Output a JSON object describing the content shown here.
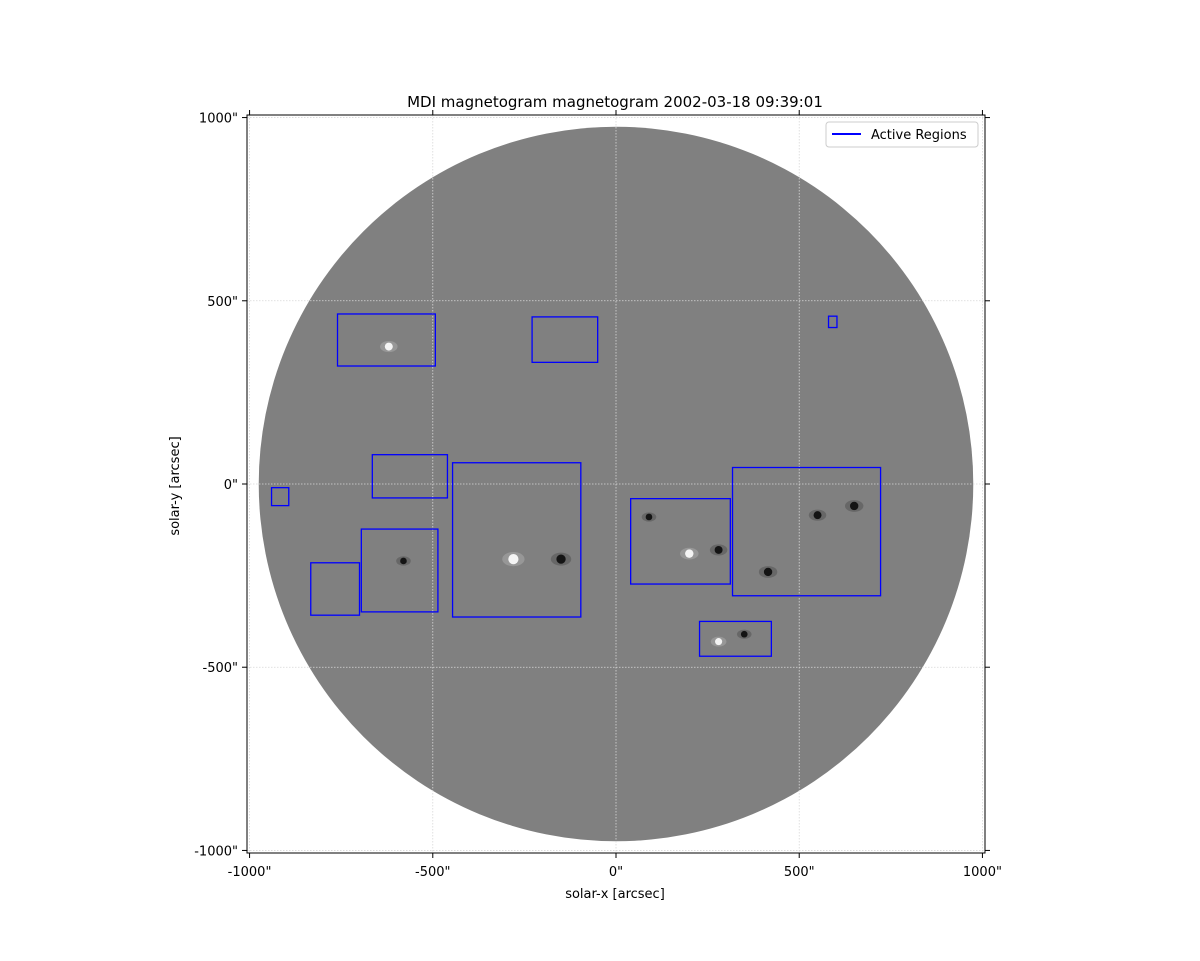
{
  "chart_data": {
    "type": "image",
    "title": "MDI magnetogram magnetogram 2002-03-18 09:39:01",
    "xlabel": "solar-x [arcsec]",
    "ylabel": "solar-y [arcsec]",
    "xlim": [
      -1007,
      1007
    ],
    "ylim": [
      -1007,
      1007
    ],
    "grid": true,
    "legend": {
      "position": "top-right",
      "entries": [
        {
          "label": "Active Regions",
          "color": "#0000ff"
        }
      ]
    },
    "x_ticks": [
      {
        "value": -1000,
        "label": "-1000\""
      },
      {
        "value": -500,
        "label": "-500\""
      },
      {
        "value": 0,
        "label": "0\""
      },
      {
        "value": 500,
        "label": "500\""
      },
      {
        "value": 1000,
        "label": "1000\""
      }
    ],
    "y_ticks": [
      {
        "value": 1000,
        "label": "1000\""
      },
      {
        "value": 500,
        "label": "500\""
      },
      {
        "value": 0,
        "label": "0\""
      },
      {
        "value": -500,
        "label": "-500\""
      },
      {
        "value": -1000,
        "label": "-1000\""
      }
    ],
    "solar_disk": {
      "center": [
        0,
        0
      ],
      "radius": 975,
      "color": "#808080"
    },
    "active_regions": [
      {
        "x": [
          -760,
          -493
        ],
        "y": [
          322,
          464
        ]
      },
      {
        "x": [
          -229,
          -50
        ],
        "y": [
          332,
          456
        ]
      },
      {
        "x": [
          580,
          603
        ],
        "y": [
          427,
          458
        ]
      },
      {
        "x": [
          -665,
          -460
        ],
        "y": [
          -38,
          80
        ]
      },
      {
        "x": [
          -446,
          -96
        ],
        "y": [
          -363,
          58
        ]
      },
      {
        "x": [
          40,
          312
        ],
        "y": [
          -273,
          -40
        ]
      },
      {
        "x": [
          318,
          722
        ],
        "y": [
          -305,
          45
        ]
      },
      {
        "x": [
          -940,
          -893
        ],
        "y": [
          -59,
          -10
        ]
      },
      {
        "x": [
          -833,
          -700
        ],
        "y": [
          -358,
          -215
        ]
      },
      {
        "x": [
          -695,
          -486
        ],
        "y": [
          -349,
          -123
        ]
      },
      {
        "x": [
          228,
          424
        ],
        "y": [
          -470,
          -375
        ]
      }
    ],
    "features": [
      {
        "x": -280,
        "y": -205,
        "polarity": "positive",
        "size": 14
      },
      {
        "x": -150,
        "y": -205,
        "polarity": "negative",
        "size": 12
      },
      {
        "x": 200,
        "y": -190,
        "polarity": "positive",
        "size": 10
      },
      {
        "x": 280,
        "y": -180,
        "polarity": "negative",
        "size": 9
      },
      {
        "x": 550,
        "y": -85,
        "polarity": "negative",
        "size": 9
      },
      {
        "x": 650,
        "y": -60,
        "polarity": "negative",
        "size": 10
      },
      {
        "x": 415,
        "y": -240,
        "polarity": "negative",
        "size": 10
      },
      {
        "x": -620,
        "y": 375,
        "polarity": "positive",
        "size": 9
      },
      {
        "x": 280,
        "y": -430,
        "polarity": "positive",
        "size": 7
      },
      {
        "x": 350,
        "y": -410,
        "polarity": "negative",
        "size": 6
      },
      {
        "x": -580,
        "y": -210,
        "polarity": "negative",
        "size": 6
      },
      {
        "x": 90,
        "y": -90,
        "polarity": "negative",
        "size": 6
      }
    ]
  }
}
